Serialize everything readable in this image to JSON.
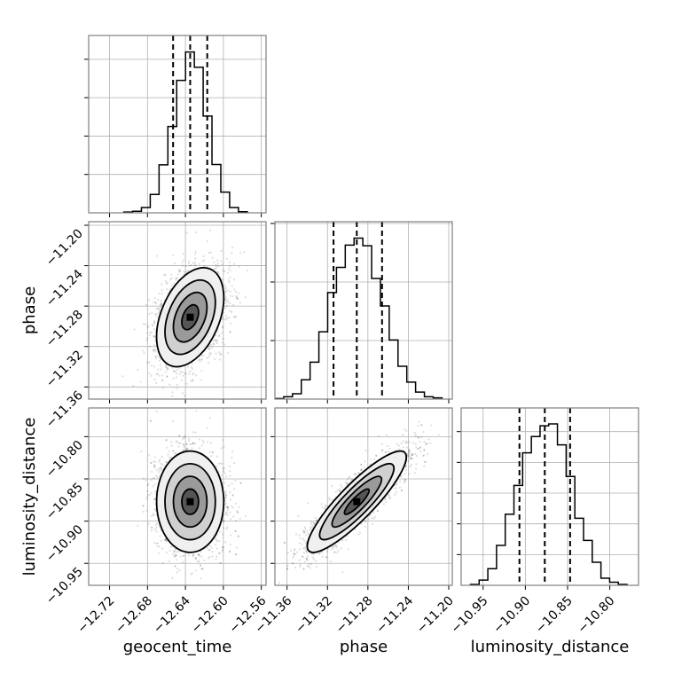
{
  "chart_data": {
    "type": "corner",
    "parameters": [
      "geocent_time",
      "phase",
      "luminosity_distance"
    ],
    "axis_labels": {
      "geocent_time": "geocent_time",
      "phase": "phase",
      "luminosity_distance": "luminosity_distance"
    },
    "ranges": {
      "geocent_time": [
        -12.742,
        -12.555
      ],
      "phase": [
        -11.372,
        -11.1965
      ],
      "luminosity_distance": [
        -10.976,
        -10.766
      ]
    },
    "ticks": {
      "geocent_time": [
        -12.72,
        -12.68,
        -12.64,
        -12.6,
        -12.56
      ],
      "phase": [
        -11.36,
        -11.32,
        -11.28,
        -11.24,
        -11.2
      ],
      "luminosity_distance": [
        -10.95,
        -10.9,
        -10.85,
        -10.8
      ]
    },
    "tick_labels": {
      "geocent_time": [
        "−12.72",
        "−12.68",
        "−12.64",
        "−12.60",
        "−12.56"
      ],
      "phase": [
        "−11.36",
        "−11.32",
        "−11.28",
        "−11.24",
        "−11.20"
      ],
      "luminosity_distance": [
        "−10.95",
        "−10.90",
        "−10.85",
        "−10.80"
      ]
    },
    "histograms": {
      "geocent_time": {
        "bin_start": -12.705,
        "bin_width": 0.0093,
        "counts": [
          2,
          4,
          14,
          48,
          125,
          225,
          345,
          419,
          379,
          252,
          126,
          54,
          14,
          3
        ],
        "ymax": 462,
        "ytick_step": 100
      },
      "phase": {
        "bin_start": -11.372,
        "bin_width": 0.0087,
        "counts": [
          1,
          4,
          9,
          33,
          63,
          115,
          182,
          225,
          263,
          275,
          262,
          206,
          159,
          101,
          56,
          29,
          12,
          4,
          2
        ],
        "ymax": 303,
        "ytick_step": 100
      },
      "luminosity_distance": {
        "bin_start": -10.965,
        "bin_width": 0.0103,
        "counts": [
          3,
          17,
          54,
          130,
          231,
          325,
          431,
          484,
          519,
          525,
          457,
          354,
          218,
          146,
          75,
          23,
          10,
          3
        ],
        "ymax": 577,
        "ytick_step": 100
      }
    },
    "quantiles": {
      "geocent_time": [
        -12.653,
        -12.635,
        -12.617
      ],
      "phase": [
        -11.314,
        -11.291,
        -11.266
      ],
      "luminosity_distance": [
        -10.907,
        -10.877,
        -10.847
      ]
    },
    "posterior": {
      "means": {
        "geocent_time": -12.635,
        "phase": -11.291,
        "luminosity_distance": -10.877
      },
      "stds": {
        "geocent_time": 0.0177,
        "phase": 0.0245,
        "luminosity_distance": 0.03
      },
      "correlations": {
        "geocent_time|phase": 0.4,
        "geocent_time|luminosity_distance": 0.0,
        "phase|luminosity_distance": 0.88
      }
    },
    "contour_sigma_levels": [
      0.5,
      1.0,
      1.5,
      2.0
    ],
    "grid": true,
    "colors": {
      "line": "#000000",
      "grid": "#b0b0b0",
      "spine": "#808080",
      "points": "#000000"
    }
  }
}
